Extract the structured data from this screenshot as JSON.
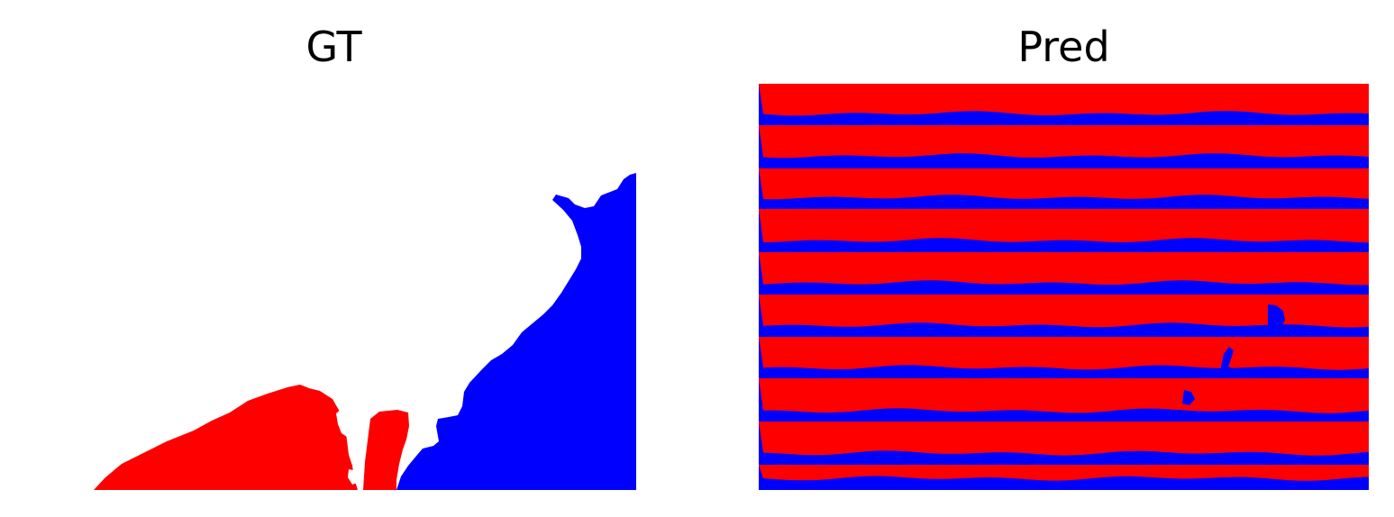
{
  "panels": {
    "gt": {
      "title": "GT"
    },
    "pred": {
      "title": "Pred"
    }
  },
  "colors": {
    "class_a": "#ff0000",
    "class_b": "#0000ff",
    "background": "#ffffff"
  }
}
